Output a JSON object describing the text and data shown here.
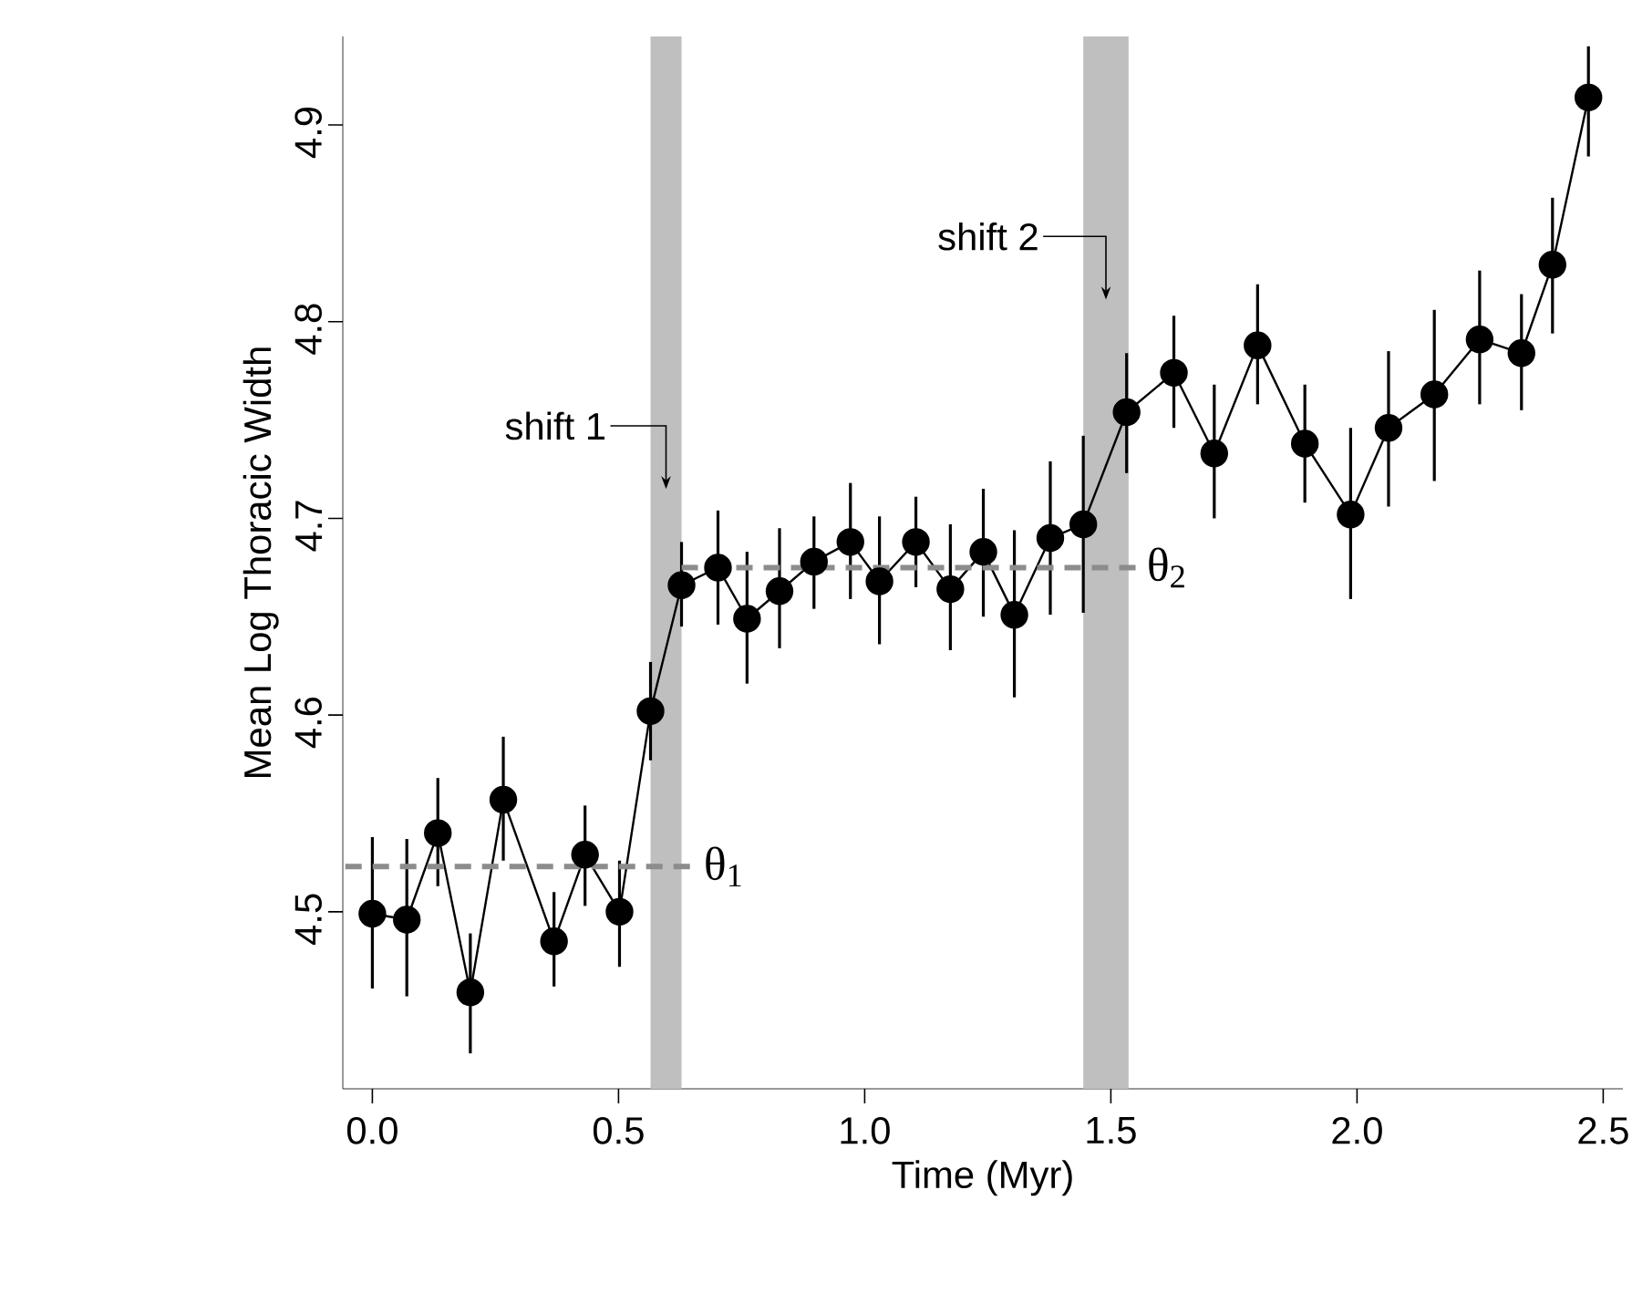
{
  "chart_data": {
    "type": "line",
    "xlabel": "Time (Myr)",
    "ylabel": "Mean Log Thoracic Width",
    "xlim": [
      -0.06,
      2.54
    ],
    "ylim": [
      4.41,
      4.945
    ],
    "xticks": [
      {
        "value": 0,
        "label": "0.0"
      },
      0.5,
      {
        "value": 1,
        "label": "1.0"
      },
      1.5,
      {
        "value": 2,
        "label": "2.0"
      },
      2.5
    ],
    "yticks": [
      4.5,
      4.6,
      4.7,
      4.8,
      4.9
    ],
    "series": [
      {
        "color": "#000000",
        "marker": "circle",
        "line_style": "solid",
        "x": [
          0.0,
          0.07,
          0.133,
          0.199,
          0.266,
          0.369,
          0.432,
          0.502,
          0.565,
          0.628,
          0.702,
          0.761,
          0.827,
          0.897,
          0.971,
          1.03,
          1.104,
          1.174,
          1.241,
          1.304,
          1.377,
          1.444,
          1.532,
          1.628,
          1.71,
          1.798,
          1.894,
          1.987,
          2.064,
          2.157,
          2.249,
          2.334,
          2.397,
          2.47
        ],
        "values": [
          4.499,
          4.496,
          4.54,
          4.459,
          4.557,
          4.485,
          4.529,
          4.5,
          4.602,
          4.666,
          4.675,
          4.649,
          4.663,
          4.678,
          4.688,
          4.668,
          4.688,
          4.664,
          4.683,
          4.651,
          4.69,
          4.697,
          4.754,
          4.774,
          4.733,
          4.788,
          4.738,
          4.702,
          4.746,
          4.763,
          4.791,
          4.784,
          4.829,
          4.914
        ],
        "errors": [
          [
            4.461,
            4.538
          ],
          [
            4.457,
            4.537
          ],
          [
            4.513,
            4.568
          ],
          [
            4.428,
            4.489
          ],
          [
            4.526,
            4.589
          ],
          [
            4.462,
            4.51
          ],
          [
            4.503,
            4.554
          ],
          [
            4.472,
            4.526
          ],
          [
            4.577,
            4.627
          ],
          [
            4.645,
            4.688
          ],
          [
            4.646,
            4.704
          ],
          [
            4.616,
            4.683
          ],
          [
            4.634,
            4.695
          ],
          [
            4.654,
            4.701
          ],
          [
            4.659,
            4.718
          ],
          [
            4.636,
            4.701
          ],
          [
            4.665,
            4.711
          ],
          [
            4.633,
            4.697
          ],
          [
            4.65,
            4.715
          ],
          [
            4.609,
            4.694
          ],
          [
            4.651,
            4.729
          ],
          [
            4.652,
            4.742
          ],
          [
            4.723,
            4.784
          ],
          [
            4.746,
            4.803
          ],
          [
            4.7,
            4.768
          ],
          [
            4.758,
            4.819
          ],
          [
            4.708,
            4.768
          ],
          [
            4.659,
            4.746
          ],
          [
            4.706,
            4.785
          ],
          [
            4.719,
            4.806
          ],
          [
            4.758,
            4.826
          ],
          [
            4.755,
            4.814
          ],
          [
            4.794,
            4.863
          ],
          [
            4.884,
            4.94
          ]
        ]
      },
      {
        "name": "θ$_{1}$",
        "color": "#8c8c8c",
        "marker": "none",
        "line_style": "dashed",
        "x": [
          -0.055,
          0.66
        ],
        "values": [
          4.523,
          4.523
        ]
      },
      {
        "name": "θ$_{2}$",
        "color": "#8c8c8c",
        "marker": "none",
        "line_style": "dashed",
        "x": [
          0.628,
          1.56
        ],
        "values": [
          4.675,
          4.675
        ]
      }
    ],
    "bands": [
      {
        "axis": "x",
        "from": 0.565,
        "to": 0.628,
        "label": "shift 1",
        "color": "#bfbfbf"
      },
      {
        "axis": "x",
        "from": 1.444,
        "to": 1.536,
        "label": "shift 2",
        "color": "#bfbfbf"
      }
    ]
  }
}
